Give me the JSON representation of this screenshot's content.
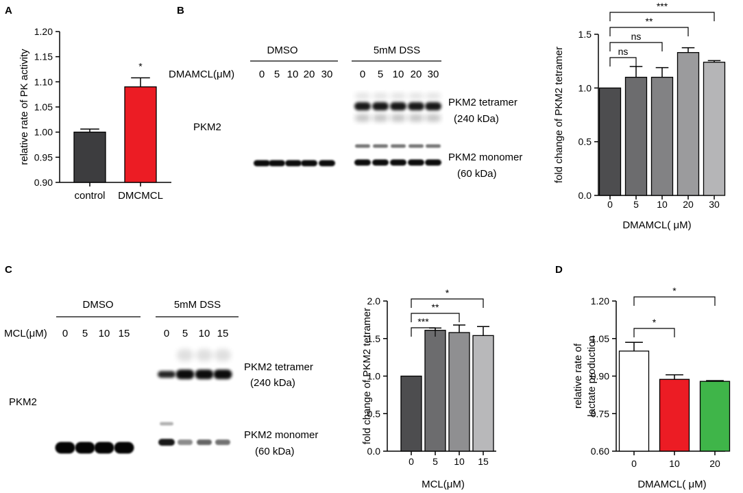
{
  "panels": {
    "A": {
      "letter": "A"
    },
    "B": {
      "letter": "B",
      "blot": {
        "group_labels": [
          "DMSO",
          "5mM DSS"
        ],
        "lane_axis_label": "DMAMCL(μM)",
        "lane_labels": [
          "0",
          "5",
          "10",
          "20",
          "30",
          "0",
          "5",
          "10",
          "20",
          "30"
        ],
        "protein_label": "PKM2",
        "band_labels": [
          "PKM2 tetramer",
          "(240 kDa)",
          "PKM2 monomer",
          "(60 kDa)"
        ]
      }
    },
    "C": {
      "letter": "C",
      "blot": {
        "group_labels": [
          "DMSO",
          "5mM DSS"
        ],
        "lane_axis_label": "MCL(μM)",
        "lane_labels": [
          "0",
          "5",
          "10",
          "15",
          "0",
          "5",
          "10",
          "15"
        ],
        "protein_label": "PKM2",
        "band_labels": [
          "PKM2 tetramer",
          "(240 kDa)",
          "PKM2 monomer",
          "(60 kDa)"
        ]
      }
    },
    "D": {
      "letter": "D"
    }
  },
  "chart_data": [
    {
      "id": "A",
      "type": "bar",
      "categories": [
        "control",
        "DMCMCL"
      ],
      "values": [
        1.0,
        1.09
      ],
      "errors": [
        0.006,
        0.018
      ],
      "colors": [
        "#3d3d3f",
        "#ec1c24"
      ],
      "ylabel": "relative rate of PK activity",
      "xlabel": "",
      "ylim": [
        0.9,
        1.2
      ],
      "yticks": [
        0.9,
        0.95,
        1.0,
        1.05,
        1.1,
        1.15,
        1.2
      ],
      "ytick_labels": [
        "0.90",
        "0.95",
        "1.00",
        "1.05",
        "1.10",
        "1.15",
        "1.20"
      ],
      "significance": [
        {
          "from": 1,
          "to": 1,
          "label": "*"
        }
      ]
    },
    {
      "id": "B",
      "type": "bar",
      "categories": [
        "0",
        "5",
        "10",
        "20",
        "30"
      ],
      "values": [
        1.0,
        1.1,
        1.1,
        1.33,
        1.24
      ],
      "errors": [
        0,
        0.1,
        0.09,
        0.045,
        0.015
      ],
      "colors": [
        "#4d4d4f",
        "#6c6c6e",
        "#828284",
        "#9b9b9d",
        "#b5b5b7"
      ],
      "ylabel": "fold change of PKM2 tetramer",
      "xlabel": "DMAMCL( μM)",
      "ylim": [
        0,
        1.5
      ],
      "yticks": [
        0,
        0.5,
        1.0,
        1.5
      ],
      "ytick_labels": [
        "0.0",
        "0.5",
        "1.0",
        "1.5"
      ],
      "significance": [
        {
          "from": 0,
          "to": 1,
          "label": "ns"
        },
        {
          "from": 0,
          "to": 2,
          "label": "ns"
        },
        {
          "from": 0,
          "to": 3,
          "label": "**"
        },
        {
          "from": 0,
          "to": 4,
          "label": "***"
        }
      ]
    },
    {
      "id": "C",
      "type": "bar",
      "categories": [
        "0",
        "5",
        "10",
        "15"
      ],
      "values": [
        1.0,
        1.61,
        1.58,
        1.54
      ],
      "errors": [
        0,
        0.03,
        0.1,
        0.12
      ],
      "colors": [
        "#4d4d4f",
        "#6c6c6e",
        "#8f8f91",
        "#b8b8ba"
      ],
      "ylabel": "fold change of PKM2 tetramer",
      "xlabel": "MCL(μM)",
      "ylim": [
        0,
        2.0
      ],
      "yticks": [
        0,
        0.5,
        1.0,
        1.5,
        2.0
      ],
      "ytick_labels": [
        "0.0",
        "0.5",
        "1.0",
        "1.5",
        "2.0"
      ],
      "significance": [
        {
          "from": 0,
          "to": 1,
          "label": "***"
        },
        {
          "from": 0,
          "to": 2,
          "label": "**"
        },
        {
          "from": 0,
          "to": 3,
          "label": "*"
        }
      ]
    },
    {
      "id": "D",
      "type": "bar",
      "categories": [
        "0",
        "10",
        "20"
      ],
      "values": [
        1.0,
        0.887,
        0.879
      ],
      "errors": [
        0.035,
        0.018,
        0.003
      ],
      "colors": [
        "#ffffff",
        "#ec1c24",
        "#3fb549"
      ],
      "ylabel": "relative rate of lactate production",
      "ylabel_lines": [
        "relative rate of",
        "lactate production"
      ],
      "xlabel": "DMAMCL( μM)",
      "ylim": [
        0.6,
        1.2
      ],
      "yticks": [
        0.6,
        0.75,
        0.9,
        1.05,
        1.2
      ],
      "ytick_labels": [
        "0.60",
        "0.75",
        "0.90",
        "1.05",
        "1.20"
      ],
      "significance": [
        {
          "from": 0,
          "to": 1,
          "label": "*"
        },
        {
          "from": 0,
          "to": 2,
          "label": "*"
        }
      ]
    }
  ]
}
